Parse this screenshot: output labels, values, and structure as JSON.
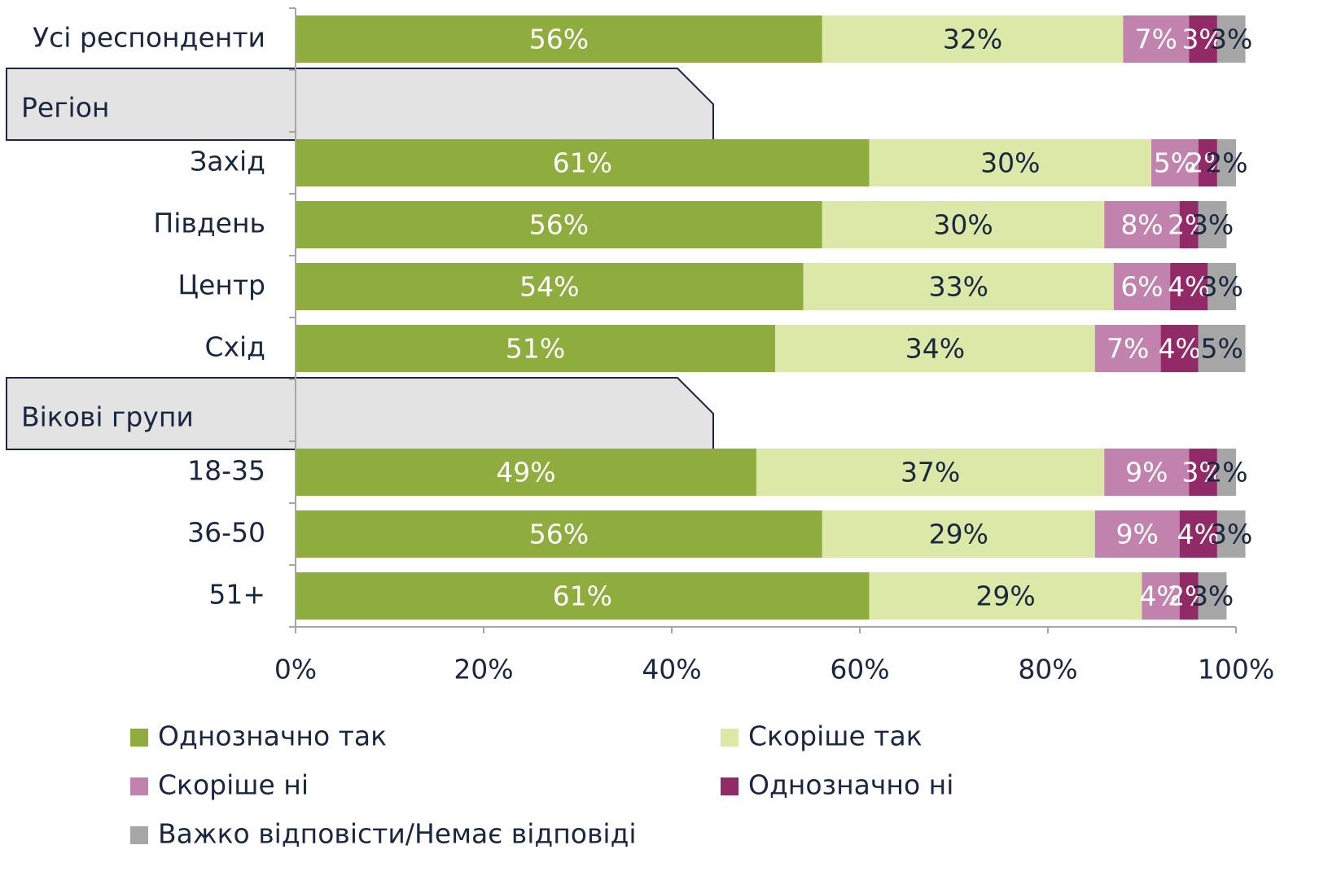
{
  "chart_data": {
    "type": "stacked_bar",
    "orientation": "horizontal",
    "categories": [
      "Усі респонденти",
      "Регіон",
      "Захід",
      "Південь",
      "Центр",
      "Схід",
      "Вікові групи",
      "18-35",
      "36-50",
      "51+"
    ],
    "series": [
      {
        "name": "Однозначно так",
        "color": "#8fad3f",
        "label_color": "#ffffff",
        "values": [
          56,
          null,
          61,
          56,
          54,
          51,
          null,
          49,
          56,
          61
        ],
        "value_labels": [
          "56%",
          null,
          "61%",
          "56%",
          "54%",
          "51%",
          null,
          "49%",
          "56%",
          "61%"
        ]
      },
      {
        "name": "Скоріше так",
        "color": "#dbe8a8",
        "label_color": "#1a2741",
        "values": [
          32,
          null,
          30,
          30,
          33,
          34,
          null,
          37,
          29,
          29
        ],
        "value_labels": [
          "32%",
          null,
          "30%",
          "30%",
          "33%",
          "34%",
          null,
          "37%",
          "29%",
          "29%"
        ]
      },
      {
        "name": "Скоріше ні",
        "color": "#c183ad",
        "label_color": "#ffffff",
        "values": [
          7,
          null,
          5,
          8,
          6,
          7,
          null,
          9,
          9,
          4
        ],
        "value_labels": [
          "7%",
          null,
          "5%",
          "8%",
          "6%",
          "7%",
          null,
          "9%",
          "9%",
          "4%"
        ]
      },
      {
        "name": "Однозначно ні",
        "color": "#922a67",
        "label_color": "#ffffff",
        "values": [
          3,
          null,
          2,
          2,
          4,
          4,
          null,
          3,
          4,
          2
        ],
        "value_labels": [
          "3%",
          null,
          "2%",
          "2%",
          "4%",
          "4%",
          null,
          "3%",
          "4%",
          "2%"
        ]
      },
      {
        "name": "Важко відповісти/Немає відповіді",
        "color": "#a6a6a6",
        "label_color": "#1a2741",
        "values": [
          3,
          null,
          2,
          3,
          3,
          5,
          null,
          2,
          3,
          3
        ],
        "value_labels": [
          "3%",
          null,
          "2%",
          "3%",
          "3%",
          "5%",
          null,
          "2%",
          "3%",
          "3%"
        ]
      }
    ],
    "xlim": [
      0,
      100
    ],
    "xticks": [
      {
        "value": 0,
        "label": "0%"
      },
      {
        "value": 20,
        "label": "20%"
      },
      {
        "value": 40,
        "label": "40%"
      },
      {
        "value": 60,
        "label": "60%"
      },
      {
        "value": 80,
        "label": "80%"
      },
      {
        "value": 100,
        "label": "100%"
      }
    ],
    "legend": "bottom"
  }
}
